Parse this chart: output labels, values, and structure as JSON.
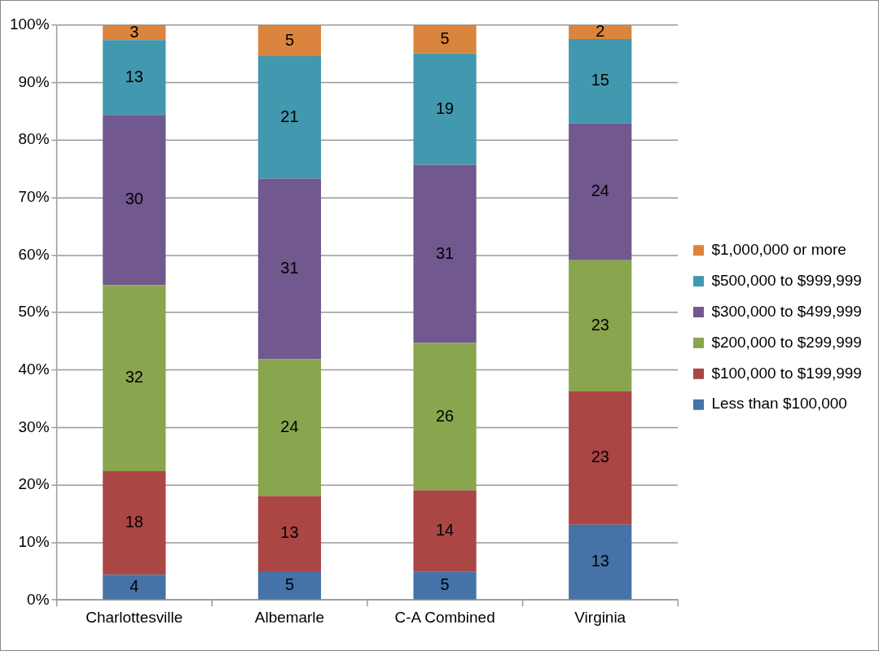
{
  "chart_data": {
    "type": "bar",
    "stacked": true,
    "categories": [
      "Charlottesville",
      "Albemarle",
      "C-A Combined",
      "Virginia"
    ],
    "series": [
      {
        "name": "Less than $100,000",
        "color": "#4572a7",
        "values": [
          4.4,
          5.0,
          4.9,
          13.1
        ],
        "value_labels": [
          "4",
          "5",
          "5",
          "13"
        ]
      },
      {
        "name": "$100,000 to $199,999",
        "color": "#aa4643",
        "values": [
          18.0,
          13.1,
          14.2,
          23.2
        ],
        "value_labels": [
          "18",
          "13",
          "14",
          "23"
        ]
      },
      {
        "name": "$200,000 to $299,999",
        "color": "#89a54e",
        "values": [
          32.4,
          23.8,
          25.6,
          22.8
        ],
        "value_labels": [
          "32",
          "24",
          "26",
          "23"
        ]
      },
      {
        "name": "$300,000 to $499,999",
        "color": "#71588f",
        "values": [
          29.6,
          31.4,
          31.0,
          23.8
        ],
        "value_labels": [
          "30",
          "31",
          "31",
          "24"
        ]
      },
      {
        "name": "$500,000 to $999,999",
        "color": "#4198af",
        "values": [
          13.0,
          21.3,
          19.4,
          14.7
        ],
        "value_labels": [
          "13",
          "21",
          "19",
          "15"
        ]
      },
      {
        "name": "$1,000,000 or more",
        "color": "#db843d",
        "values": [
          2.6,
          5.4,
          4.9,
          2.4
        ],
        "value_labels": [
          "3",
          "5",
          "5",
          "2"
        ]
      }
    ],
    "ylim": [
      0,
      100
    ],
    "yticks": [
      {
        "value": 0,
        "label": "0%"
      },
      {
        "value": 10,
        "label": "10%"
      },
      {
        "value": 20,
        "label": "20%"
      },
      {
        "value": 30,
        "label": "30%"
      },
      {
        "value": 40,
        "label": "40%"
      },
      {
        "value": 50,
        "label": "50%"
      },
      {
        "value": 60,
        "label": "60%"
      },
      {
        "value": 70,
        "label": "70%"
      },
      {
        "value": 80,
        "label": "80%"
      },
      {
        "value": 90,
        "label": "90%"
      },
      {
        "value": 100,
        "label": "100%"
      }
    ],
    "grid": "y",
    "legend": "right"
  }
}
